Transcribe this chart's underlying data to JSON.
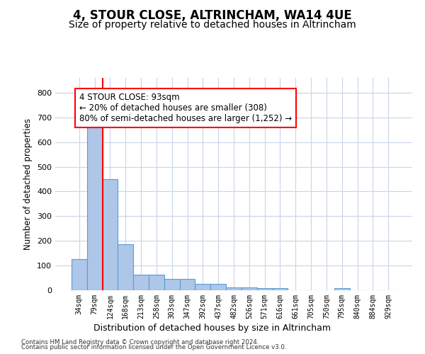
{
  "title": "4, STOUR CLOSE, ALTRINCHAM, WA14 4UE",
  "subtitle": "Size of property relative to detached houses in Altrincham",
  "xlabel": "Distribution of detached houses by size in Altrincham",
  "ylabel": "Number of detached properties",
  "categories": [
    "34sqm",
    "79sqm",
    "124sqm",
    "168sqm",
    "213sqm",
    "258sqm",
    "303sqm",
    "347sqm",
    "392sqm",
    "437sqm",
    "482sqm",
    "526sqm",
    "571sqm",
    "616sqm",
    "661sqm",
    "705sqm",
    "750sqm",
    "795sqm",
    "840sqm",
    "884sqm",
    "929sqm"
  ],
  "values": [
    125,
    660,
    450,
    185,
    62,
    62,
    45,
    45,
    25,
    25,
    12,
    12,
    10,
    8,
    0,
    0,
    0,
    8,
    0,
    0,
    0
  ],
  "bar_color": "#aec6e8",
  "bar_edge_color": "#5b9bd5",
  "red_line_x": 1.5,
  "annotation_text": "4 STOUR CLOSE: 93sqm\n← 20% of detached houses are smaller (308)\n80% of semi-detached houses are larger (1,252) →",
  "annotation_box_color": "white",
  "annotation_box_edge_color": "red",
  "ylim": [
    0,
    860
  ],
  "yticks": [
    0,
    100,
    200,
    300,
    400,
    500,
    600,
    700,
    800
  ],
  "footer1": "Contains HM Land Registry data © Crown copyright and database right 2024.",
  "footer2": "Contains public sector information licensed under the Open Government Licence v3.0.",
  "bg_color": "#ffffff",
  "grid_color": "#c8d4e8",
  "title_fontsize": 12,
  "subtitle_fontsize": 10,
  "annot_fontsize": 8.5
}
